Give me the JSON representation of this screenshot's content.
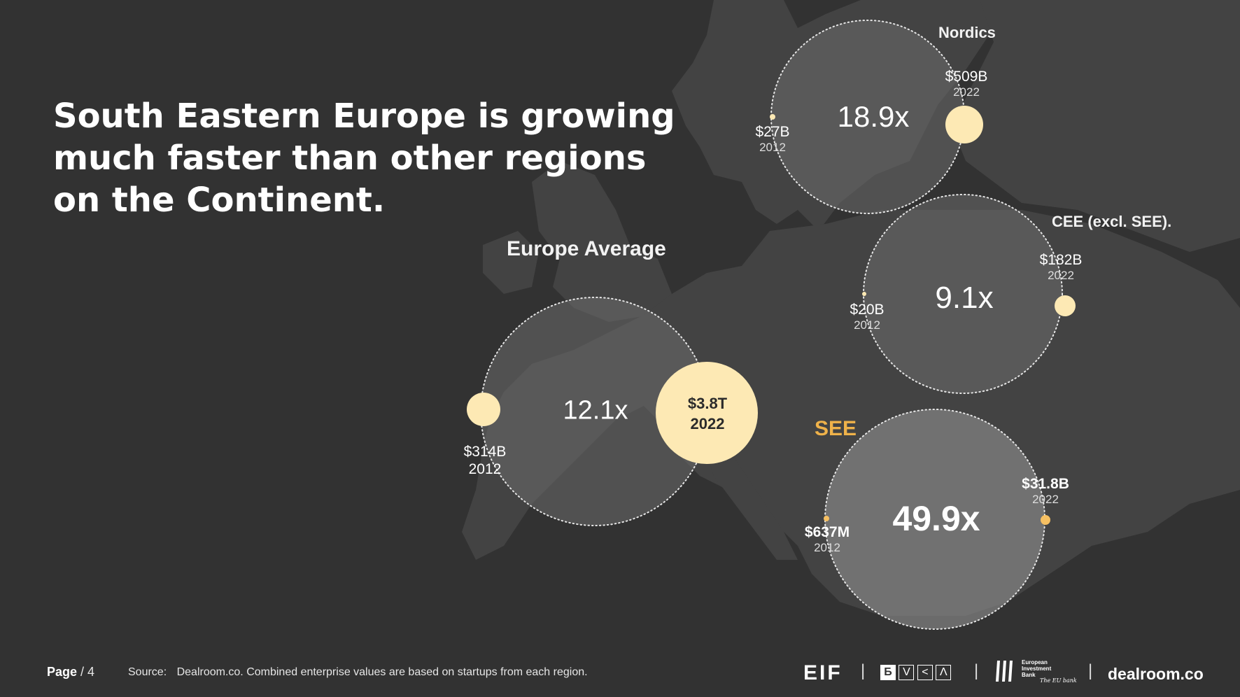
{
  "title_lines": [
    "South Eastern Europe is growing",
    "much faster than other regions",
    "on the Continent."
  ],
  "colors": {
    "background": "#323232",
    "land": "#434343",
    "circle_fill": "#6b6b6b",
    "see_circle_fill": "#8a8a8a",
    "bubble": "#fde9b4",
    "see_accent": "#f6c062",
    "see_label": "#efb24a"
  },
  "regions": {
    "europe": {
      "label": "Europe Average",
      "ratio": "12.1x",
      "start_amount": "$314B",
      "start_year": "2012",
      "end_amount": "$3.8T",
      "end_year": "2022",
      "start_value_usd_b": 314,
      "end_value_usd_b": 3800
    },
    "nordics": {
      "label": "Nordics",
      "ratio": "18.9x",
      "start_amount": "$27B",
      "start_year": "2012",
      "end_amount": "$509B",
      "end_year": "2022",
      "start_value_usd_b": 27,
      "end_value_usd_b": 509
    },
    "cee": {
      "label": "CEE (excl. SEE).",
      "ratio": "9.1x",
      "start_amount": "$20B",
      "start_year": "2012",
      "end_amount": "$182B",
      "end_year": "2022",
      "start_value_usd_b": 20,
      "end_value_usd_b": 182
    },
    "see": {
      "label": "SEE",
      "ratio": "49.9x",
      "start_amount": "$637M",
      "start_year": "2012",
      "end_amount": "$31.8B",
      "end_year": "2022",
      "start_value_usd_b": 0.637,
      "end_value_usd_b": 31.8
    }
  },
  "footer": {
    "page_label": "Page",
    "page_number": "/ 4",
    "source_label": "Source:",
    "source_text": "Dealroom.co. Combined enterprise values are based on startups from each region."
  },
  "logos": {
    "eif": "EIF",
    "bvca": [
      "Б",
      "V",
      "<",
      "Λ"
    ],
    "eib_line1": "European",
    "eib_line2": "Investment",
    "eib_line3": "Bank",
    "eib_tagline": "The EU bank",
    "dealroom": "dealroom.co"
  }
}
